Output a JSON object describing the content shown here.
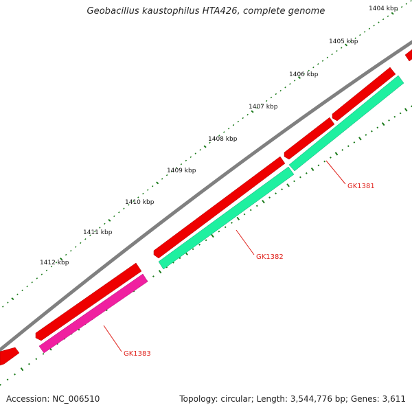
{
  "title": "Geobacillus kaustophilus HTA426, complete genome",
  "accession": "Accession: NC_006510",
  "summary": "Topology: circular; Length: 3,544,776 bp; Genes: 3,611",
  "scale_labels": [
    "1404 kbp",
    "1405 kbp",
    "1406 kbp",
    "1407 kbp",
    "1408 kbp",
    "1409 kbp",
    "1410 kbp",
    "1411 kbp",
    "1412 kbp"
  ],
  "gene_labels": [
    "GK1381",
    "GK1382",
    "GK1383"
  ],
  "colors": {
    "backbone": "#808080",
    "cds_forward": "#ee0000",
    "gene_GK1381": "#1ef0a0",
    "gene_GK1382": "#1ef0a0",
    "gene_GK1383": "#f020a0",
    "ticks": "#1a7a1a",
    "label_color": "#e0201a"
  }
}
